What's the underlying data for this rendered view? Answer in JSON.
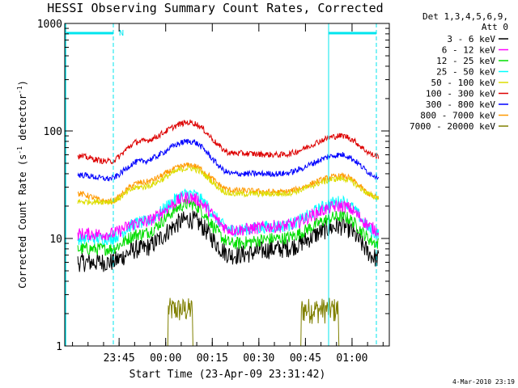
{
  "chart_data": {
    "type": "line",
    "title": "HESSI Observing Summary Count Rates, Corrected",
    "xlabel": "Start Time (23-Apr-09 23:31:42)",
    "ylabel_main": "Corrected Count Rate (s",
    "ylabel_sup1": "-1",
    "ylabel_mid": " detector",
    "ylabel_sup2": "-1",
    "ylabel_end": ")",
    "x_unit": "minutes since 23:31:42",
    "xlim": [
      -4.2,
      100.3
    ],
    "ylim": [
      1,
      1000
    ],
    "yscale": "log",
    "x_ticks": [
      {
        "label": "23:45",
        "value": 13.3
      },
      {
        "label": "00:00",
        "value": 28.3
      },
      {
        "label": "00:15",
        "value": 43.3
      },
      {
        "label": "00:30",
        "value": 58.3
      },
      {
        "label": "00:45",
        "value": 73.3
      },
      {
        "label": "01:00",
        "value": 88.3
      }
    ],
    "y_ticks": [
      {
        "label": "1",
        "value": 1
      },
      {
        "label": "10",
        "value": 10
      },
      {
        "label": "100",
        "value": 100
      },
      {
        "label": "1000",
        "value": 1000
      }
    ],
    "legend_header": [
      "Det 1,3,4,5,6,9,",
      "Att 0"
    ],
    "legend_position": "right",
    "series": [
      {
        "name": "3 - 6 keV",
        "color": "#000000",
        "x": [
          0,
          10,
          20,
          36,
          50,
          65,
          85,
          97
        ],
        "y": [
          6,
          6,
          8,
          15,
          7,
          8,
          13,
          6.5
        ]
      },
      {
        "name": "6 - 12 keV",
        "color": "#ff00ff",
        "x": [
          0,
          10,
          20,
          36,
          50,
          65,
          85,
          97
        ],
        "y": [
          11,
          11,
          14,
          24,
          12,
          13,
          20,
          12
        ]
      },
      {
        "name": "12 - 25 keV",
        "color": "#00dd00",
        "x": [
          0,
          10,
          20,
          36,
          50,
          65,
          85,
          97
        ],
        "y": [
          8,
          8,
          11,
          21,
          9,
          10,
          16,
          9
        ]
      },
      {
        "name": "25 - 50 keV",
        "color": "#00ffff",
        "x": [
          0,
          10,
          20,
          36,
          50,
          65,
          85,
          97
        ],
        "y": [
          10,
          10,
          14,
          26,
          12,
          13,
          22,
          11
        ]
      },
      {
        "name": "50 - 100 keV",
        "color": "#dddd00",
        "x": [
          0,
          10,
          20,
          36,
          50,
          65,
          85,
          97
        ],
        "y": [
          22,
          22,
          30,
          45,
          26,
          26,
          36,
          24
        ]
      },
      {
        "name": "100 - 300 keV",
        "color": "#dd0000",
        "x": [
          0,
          10,
          20,
          36,
          50,
          65,
          85,
          97
        ],
        "y": [
          58,
          52,
          80,
          120,
          62,
          60,
          90,
          58
        ]
      },
      {
        "name": "300 - 800 keV",
        "color": "#0000ff",
        "x": [
          0,
          10,
          20,
          36,
          50,
          65,
          85,
          97
        ],
        "y": [
          39,
          36,
          52,
          80,
          40,
          40,
          60,
          38
        ]
      },
      {
        "name": "800 - 7000 keV",
        "color": "#ff9900",
        "x": [
          0,
          10,
          20,
          36,
          50,
          65,
          85,
          97
        ],
        "y": [
          26,
          22,
          33,
          48,
          28,
          27,
          38,
          24
        ]
      },
      {
        "name": "7000 - 20000 keV",
        "color": "#808000",
        "x": [
          0,
          10,
          20,
          36,
          50,
          65,
          85,
          97
        ],
        "y": [
          1,
          1,
          1,
          2.5,
          1,
          1,
          2,
          1
        ]
      }
    ],
    "annotations": [
      {
        "label": "N"
      }
    ],
    "footer_date": "4-Mar-2010 23:19"
  }
}
